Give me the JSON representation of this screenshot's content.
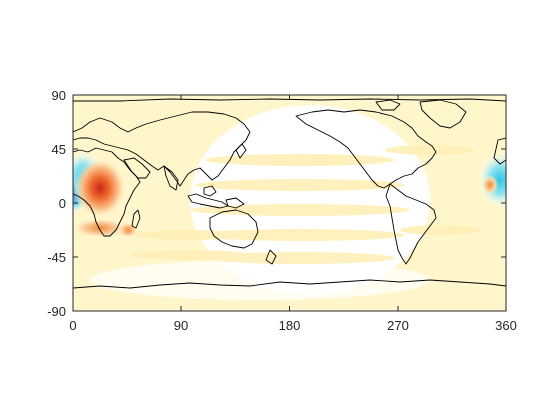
{
  "map": {
    "projection": "equirectangular",
    "lon_range": [
      0,
      360
    ],
    "lat_range": [
      -90,
      90
    ],
    "x_ticks": [
      "0",
      "90",
      "180",
      "270",
      "360"
    ],
    "y_ticks": [
      "90",
      "45",
      "0",
      "-45",
      "-90"
    ],
    "colormap": "diverging blue-white-red",
    "background_tint": "#fff6cc",
    "frame_color": "#262626",
    "coastline_color": "#000000",
    "grid": false
  }
}
